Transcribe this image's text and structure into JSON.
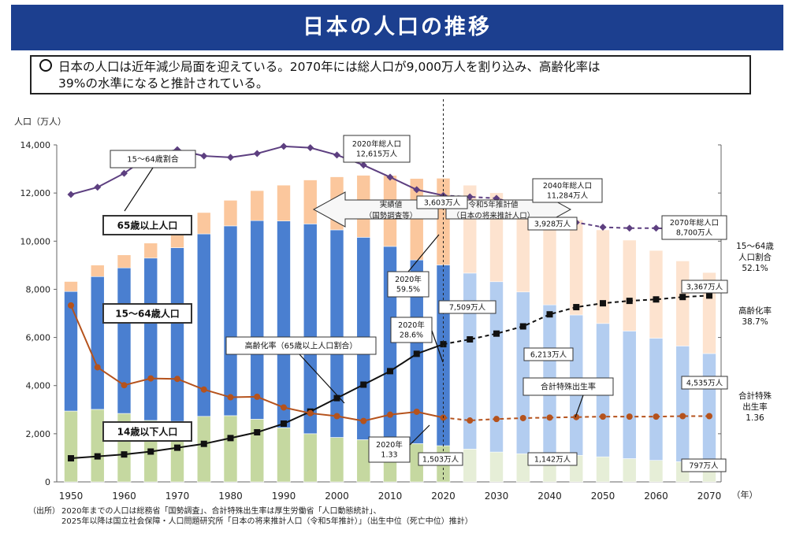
{
  "page": {
    "title": "日本の人口の推移",
    "summary_line1": "日本の人口は近年減少局面を迎えている。2070年には総人口が9,000万人を割り込み、高齢化率は",
    "summary_line2": "39%の水準になると推計されている。"
  },
  "source": {
    "label": "（出所）",
    "line1": "2020年までの人口は総務省「国勢調査」、合計特殊出生率は厚生労働省「人口動態統計」、",
    "line2": "2025年以降は国立社会保障・人口問題研究所「日本の将来推計人口（令和5年推計）」（出生中位（死亡中位）推計）"
  },
  "chart_data": {
    "type": "bar",
    "ylabel": "人口（万人）",
    "xunit": "（年）",
    "ylim": [
      0,
      14000
    ],
    "yticks": [
      "0",
      "2,000",
      "4,000",
      "6,000",
      "8,000",
      "10,000",
      "12,000",
      "14,000"
    ],
    "xtick_labels": [
      "1950",
      "1960",
      "1970",
      "1980",
      "1990",
      "2000",
      "2010",
      "2020",
      "2030",
      "2040",
      "2050",
      "2060",
      "2070"
    ],
    "colors": {
      "under15": "#c5d8a0",
      "under15_proj": "#e6eed7",
      "age15_64": "#4a7fd0",
      "age15_64_proj": "#b3cdf0",
      "over65": "#fbc79d",
      "over65_proj": "#fde3cf",
      "working_ratio": "#5d3f80",
      "aging_rate": "#111111",
      "fertility": "#b5521c",
      "header": "#1c3f8f"
    },
    "years": [
      1950,
      1955,
      1960,
      1965,
      1970,
      1975,
      1980,
      1985,
      1990,
      1995,
      2000,
      2005,
      2010,
      2015,
      2020,
      2025,
      2030,
      2035,
      2040,
      2045,
      2050,
      2055,
      2060,
      2065,
      2070
    ],
    "series": [
      {
        "name": "14歳以下人口",
        "values": [
          2943,
          3012,
          2843,
          2553,
          2515,
          2722,
          2751,
          2603,
          2249,
          2001,
          1847,
          1752,
          1680,
          1589,
          1503,
          1363,
          1240,
          1169,
          1142,
          1103,
          1041,
          966,
          893,
          838,
          797
        ]
      },
      {
        "name": "15～64歳人口",
        "values": [
          4966,
          5517,
          6047,
          6744,
          7212,
          7581,
          7883,
          8251,
          8590,
          8716,
          8622,
          8409,
          8103,
          7629,
          7509,
          7310,
          7076,
          6722,
          6213,
          5832,
          5540,
          5302,
          5078,
          4809,
          4535
        ]
      },
      {
        "name": "65歳以上人口",
        "values": [
          416,
          479,
          540,
          624,
          739,
          887,
          1065,
          1247,
          1489,
          1826,
          2204,
          2576,
          2948,
          3387,
          3603,
          3653,
          3696,
          3773,
          3928,
          3945,
          3888,
          3777,
          3644,
          3532,
          3367
        ]
      }
    ],
    "lines": [
      {
        "name": "15～64歳割合",
        "values": [
          59.7,
          61.2,
          64.1,
          67.9,
          69.0,
          67.7,
          67.4,
          68.2,
          69.7,
          69.4,
          67.9,
          65.8,
          63.3,
          60.7,
          59.5,
          59.2,
          58.9,
          57.3,
          55.1,
          53.9,
          52.9,
          52.7,
          52.7,
          52.5,
          52.1
        ]
      },
      {
        "name": "高齢化率（65歳以上人口割合）",
        "values": [
          4.9,
          5.3,
          5.7,
          6.3,
          7.1,
          7.9,
          9.1,
          10.3,
          12.1,
          14.6,
          17.4,
          20.2,
          23.0,
          26.6,
          28.6,
          29.6,
          30.8,
          32.3,
          34.8,
          36.3,
          37.1,
          37.6,
          37.9,
          38.4,
          38.7
        ]
      },
      {
        "name": "合計特殊出生率",
        "values": [
          3.65,
          2.37,
          2.0,
          2.14,
          2.13,
          1.91,
          1.75,
          1.76,
          1.54,
          1.42,
          1.36,
          1.26,
          1.39,
          1.45,
          1.33,
          1.27,
          1.3,
          1.32,
          1.33,
          1.34,
          1.35,
          1.35,
          1.35,
          1.36,
          1.36
        ]
      }
    ],
    "band": {
      "actual": "実績値",
      "actual_sub": "（国勢調査等）",
      "proj": "令和5年推計値",
      "proj_sub": "（日本の将来推計人口）"
    },
    "annotations": {
      "pop2020": [
        "2020年総人口",
        "12,615万人"
      ],
      "pop2040": [
        "2040年総人口",
        "11,284万人"
      ],
      "pop2070": [
        "2070年総人口",
        "8,700万人"
      ],
      "v3603": "3,603万人",
      "v7509": "7,509万人",
      "v1503": "1,503万人",
      "v3928": "3,928万人",
      "v6213": "6,213万人",
      "v1142": "1,142万人",
      "v3367": "3,367万人",
      "v4535": "4,535万人",
      "v797": "797万人",
      "r2020_working": [
        "2020年",
        "59.5%"
      ],
      "r2020_aging": [
        "2020年",
        "28.6%"
      ],
      "r2020_fert": [
        "2020年",
        "1.33"
      ],
      "label_working_ratio": "15～64歳割合",
      "label_over65": "65歳以上人口",
      "label_15_64": "15～64歳人口",
      "label_under15": "14歳以下人口",
      "label_aging": "高齢化率（65歳以上人口割合）",
      "label_fertility": "合計特殊出生率",
      "right_working": [
        "15～64歳",
        "人口割合",
        "52.1%"
      ],
      "right_aging": [
        "高齢化率",
        "38.7%"
      ],
      "right_fert": [
        "合計特殊",
        "出生率",
        "1.36"
      ]
    }
  }
}
